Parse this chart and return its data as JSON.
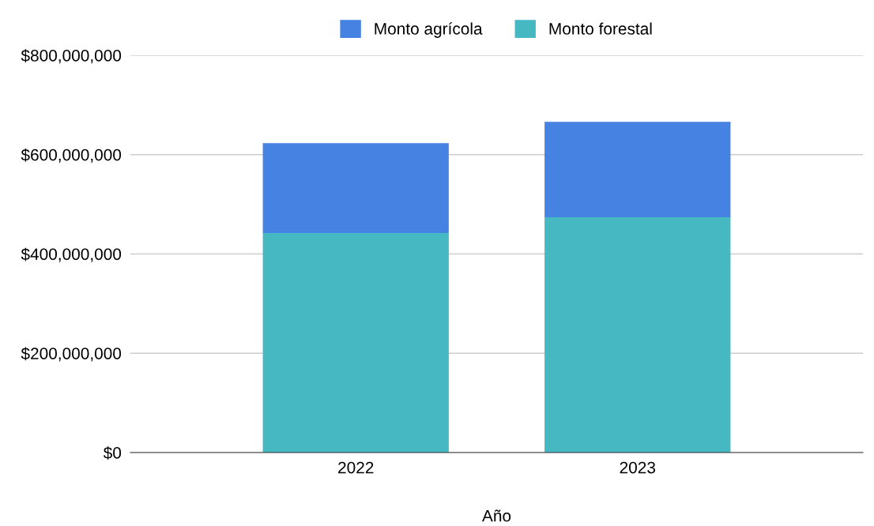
{
  "chart_data": {
    "type": "bar",
    "stacked": true,
    "xlabel": "Año",
    "categories": [
      "2022",
      "2023"
    ],
    "series": [
      {
        "name": "Monto forestal",
        "color": "#46b8c2",
        "values": [
          442000000,
          474000000
        ]
      },
      {
        "name": "Monto agrícola",
        "color": "#4682e2",
        "values": [
          181000000,
          192000000
        ]
      }
    ],
    "ylim": [
      0,
      800000000
    ],
    "yticks": [
      {
        "value": 0,
        "label": "$0"
      },
      {
        "value": 200000000,
        "label": "$200,000,000"
      },
      {
        "value": 400000000,
        "label": "$400,000,000"
      },
      {
        "value": 600000000,
        "label": "$600,000,000"
      },
      {
        "value": 800000000,
        "label": "$800,000,000"
      }
    ],
    "grid": "y",
    "legend": "top"
  }
}
